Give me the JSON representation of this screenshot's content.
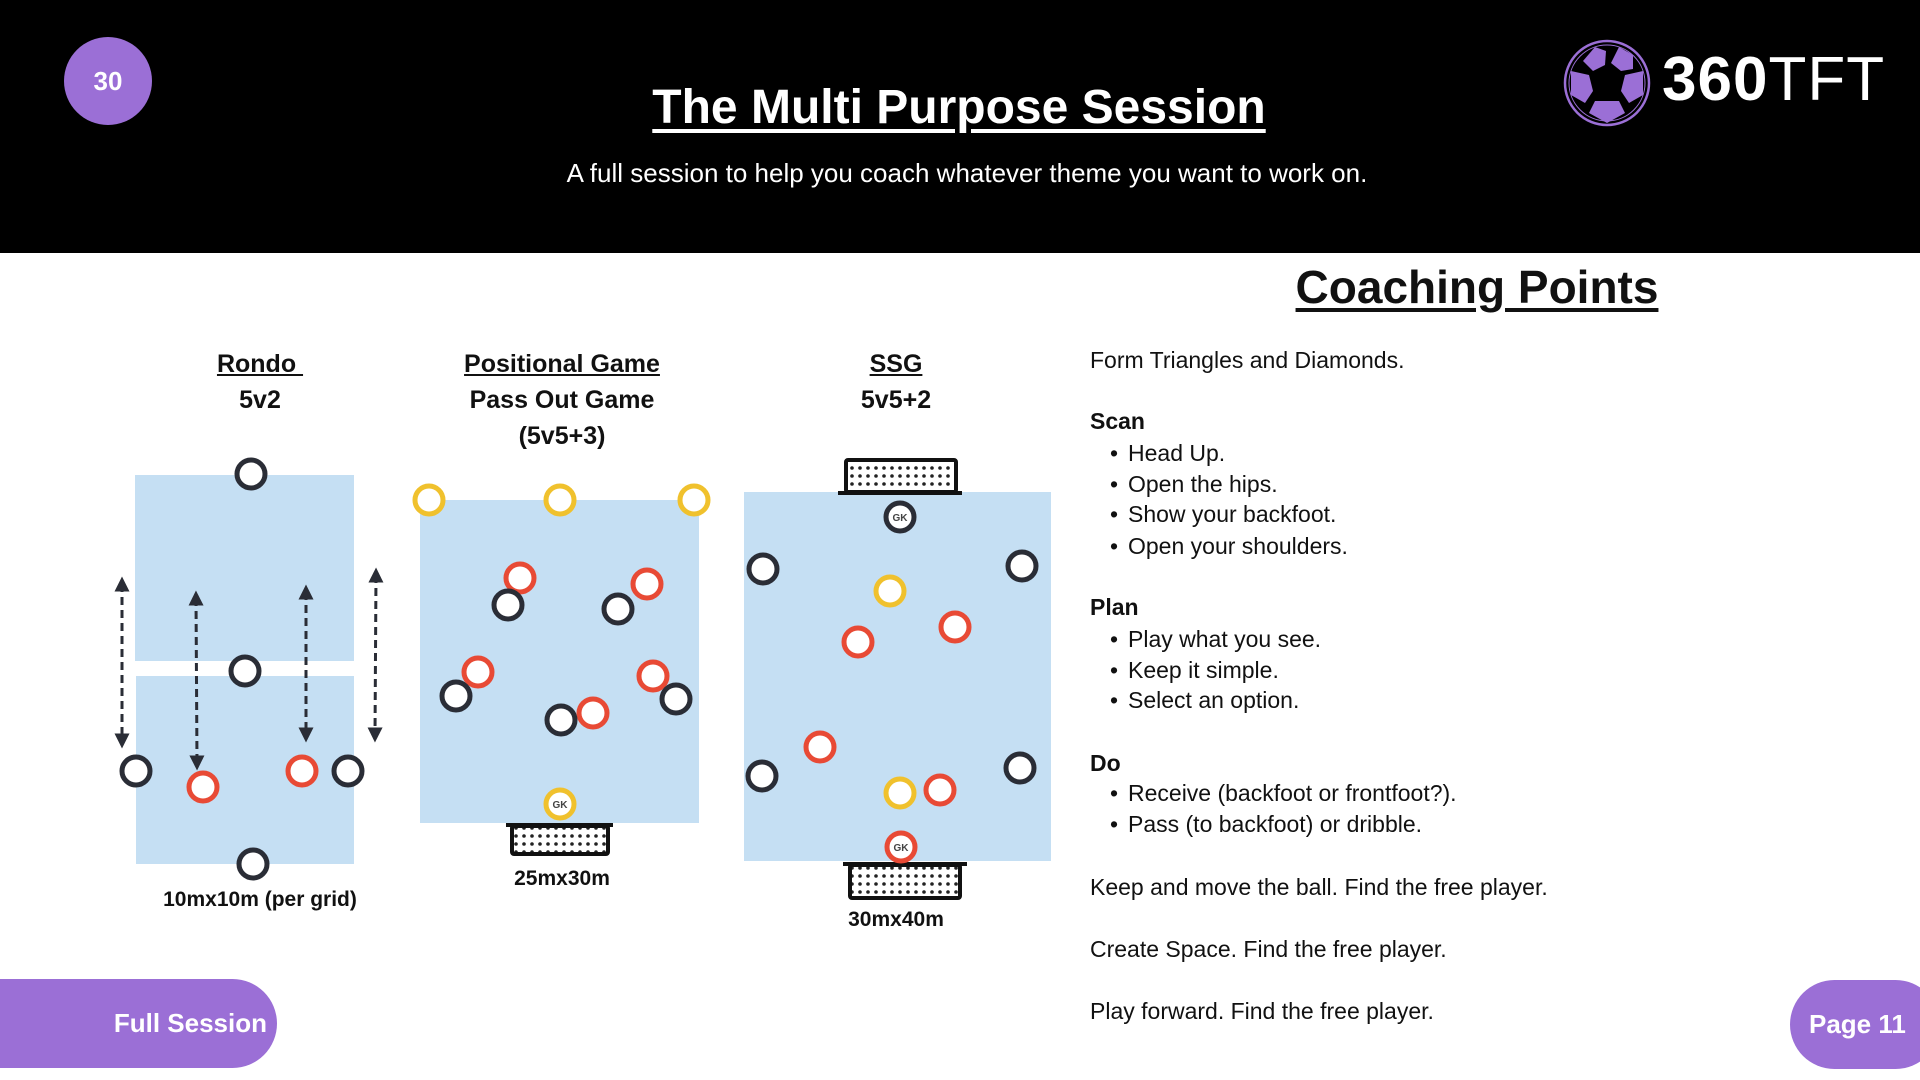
{
  "header": {
    "session_number": "30",
    "title": "The Multi Purpose Session",
    "subtitle": "A full session to help you coach whatever theme you want to work on.",
    "logo": {
      "text_bold": "360",
      "text_light": "TFT",
      "icon": "soccer-ball-icon"
    }
  },
  "colors": {
    "accent": "#9b6fd6",
    "header_bg": "#000000",
    "pitch": "#c5dff3",
    "team_dark": "#2a2d36",
    "team_red": "#e84a35",
    "neutral_yellow": "#f0c12d"
  },
  "diagrams": [
    {
      "title": "Rondo ",
      "lines": [
        "5v2"
      ],
      "size_label": "10mx10m (per grid)"
    },
    {
      "title": "Positional Game",
      "lines": [
        "Pass Out Game",
        "(5v5+3)"
      ],
      "size_label": "25mx30m"
    },
    {
      "title": "SSG",
      "lines": [
        "5v5+2"
      ],
      "size_label": "30mx40m"
    }
  ],
  "goalkeeper_label": "GK",
  "coaching_points": {
    "title": "Coaching Points",
    "intro": "Form Triangles and Diamonds.",
    "sections": [
      {
        "heading": "Scan",
        "items": [
          "Head Up.",
          "Open the hips.",
          "Show your backfoot.",
          "Open your shoulders."
        ]
      },
      {
        "heading": "Plan",
        "items": [
          "Play what you see.",
          "Keep it simple.",
          "Select an option."
        ]
      },
      {
        "heading": "Do",
        "items": [
          "Receive (backfoot or frontfoot?).",
          "Pass (to backfoot) or dribble."
        ]
      }
    ],
    "closing": [
      "Keep and move the ball. Find the free player.",
      "Create Space. Find the free player.",
      "Play forward. Find the free player."
    ]
  },
  "footer": {
    "left_label": "Full Session",
    "page_label": "Page 11"
  }
}
